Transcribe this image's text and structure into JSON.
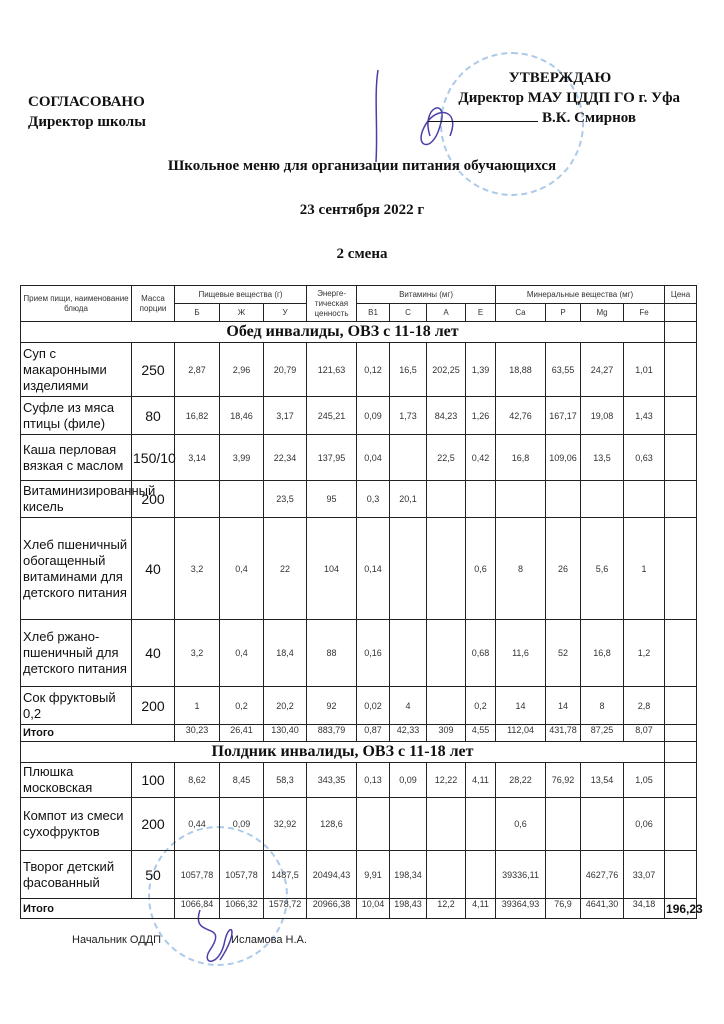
{
  "header": {
    "agreed_title": "СОГЛАСОВАНО",
    "agreed_role": "Директор школы",
    "approve_title": "УТВЕРЖДАЮ",
    "approve_role": "Директор МАУ ЦДДП ГО г. Уфа",
    "approve_name": "В.К. Смирнов"
  },
  "title": "Школьное меню для организации питания обучающихся",
  "date": "23 сентября 2022 г",
  "shift": "2 смена",
  "table": {
    "head": {
      "meal": "Прием пищи, наименование блюда",
      "mass": "Масса порции",
      "nutrients": "Пищевые вещества (г)",
      "energy": "Энерге-тическая ценность",
      "vitamins": "Витамины (мг)",
      "minerals": "Минеральные вещества (мг)",
      "price": "Цена",
      "sub": [
        "Б",
        "Ж",
        "У",
        "B1",
        "C",
        "A",
        "E",
        "Ca",
        "P",
        "Mg",
        "Fe"
      ]
    },
    "sections": [
      {
        "title": "Обед инвалиды, ОВЗ с 11-18 лет",
        "rows": [
          {
            "name": "Суп с макаронными изделиями",
            "mass": "250",
            "v": [
              "2,87",
              "2,96",
              "20,79",
              "121,63",
              "0,12",
              "16,5",
              "202,25",
              "1,39",
              "18,88",
              "63,55",
              "24,27",
              "1,01"
            ]
          },
          {
            "name": "Суфле из мяса птицы (филе)",
            "mass": "80",
            "v": [
              "16,82",
              "18,46",
              "3,17",
              "245,21",
              "0,09",
              "1,73",
              "84,23",
              "1,26",
              "42,76",
              "167,17",
              "19,08",
              "1,43"
            ]
          },
          {
            "name": "Каша перловая вязкая с маслом",
            "mass": "150/10",
            "v": [
              "3,14",
              "3,99",
              "22,34",
              "137,95",
              "0,04",
              "",
              "22,5",
              "0,42",
              "16,8",
              "109,06",
              "13,5",
              "0,63"
            ]
          },
          {
            "name": "Витаминизированный кисель",
            "mass": "200",
            "v": [
              "",
              "",
              "23,5",
              "95",
              "0,3",
              "20,1",
              "",
              "",
              "",
              "",
              "",
              ""
            ]
          },
          {
            "name": "Хлеб пшеничный обогащенный витаминами для детского питания",
            "mass": "40",
            "v": [
              "3,2",
              "0,4",
              "22",
              "104",
              "0,14",
              "",
              "",
              "0,6",
              "8",
              "26",
              "5,6",
              "1"
            ]
          },
          {
            "name": "Хлеб ржано-пшеничный для детского питания",
            "mass": "40",
            "v": [
              "3,2",
              "0,4",
              "18,4",
              "88",
              "0,16",
              "",
              "",
              "0,68",
              "11,6",
              "52",
              "16,8",
              "1,2"
            ]
          },
          {
            "name": "Сок фруктовый 0,2",
            "mass": "200",
            "v": [
              "1",
              "0,2",
              "20,2",
              "92",
              "0,02",
              "4",
              "",
              "0,2",
              "14",
              "14",
              "8",
              "2,8"
            ]
          }
        ],
        "total": {
          "label": "Итого",
          "v": [
            "30,23",
            "26,41",
            "130,40",
            "883,79",
            "0,87",
            "42,33",
            "309",
            "4,55",
            "112,04",
            "431,78",
            "87,25",
            "8,07"
          ],
          "price": ""
        }
      },
      {
        "title": "Полдник инвалиды, ОВЗ с 11-18 лет",
        "rows": [
          {
            "name": "Плюшка московская",
            "mass": "100",
            "v": [
              "8,62",
              "8,45",
              "58,3",
              "343,35",
              "0,13",
              "0,09",
              "12,22",
              "4,11",
              "28,22",
              "76,92",
              "13,54",
              "1,05"
            ]
          },
          {
            "name": "Компот из смеси сухофруктов",
            "mass": "200",
            "v": [
              "0,44",
              "0,09",
              "32,92",
              "128,6",
              "",
              "",
              "",
              "",
              "0,6",
              "",
              "",
              "0,06"
            ]
          },
          {
            "name": "Творог детский фасованный",
            "mass": "50",
            "v": [
              "1057,78",
              "1057,78",
              "1487,5",
              "20494,43",
              "9,91",
              "198,34",
              "",
              "",
              "39336,11",
              "",
              "4627,76",
              "33,07"
            ]
          }
        ],
        "total": {
          "label": "Итого",
          "v": [
            "1066,84",
            "1066,32",
            "1578,72",
            "20966,38",
            "10,04",
            "198,43",
            "12,2",
            "4,11",
            "39364,93",
            "76,9",
            "4641,30",
            "34,18"
          ],
          "price": "196,23"
        }
      }
    ]
  },
  "footer": {
    "role": "Начальник ОДДП",
    "name": "Исламова Н.А."
  },
  "colors": {
    "stamp": "#6a9fd6",
    "signature": "#4a3fa8"
  }
}
